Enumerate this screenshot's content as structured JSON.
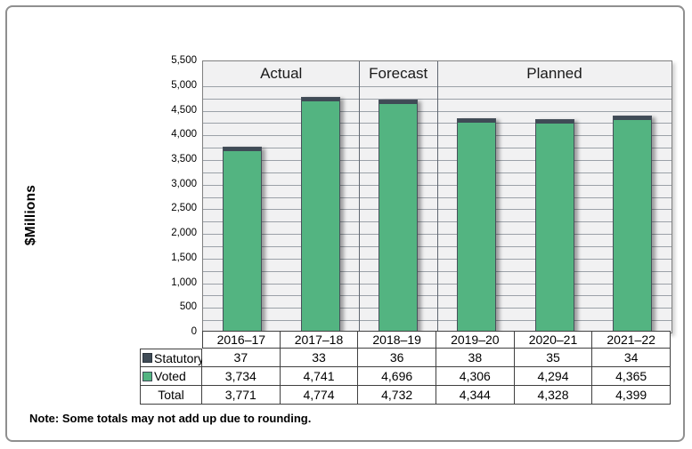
{
  "y_axis_title": "$Millions",
  "note": "Note: Some totals may not add up due to rounding.",
  "colors": {
    "voted_green": "#53B481",
    "statutory_slate": "#3F4B56",
    "plot_background": "#f1f1f2",
    "gridline": "#9ba1a8",
    "separator": "#5f6670",
    "table_border": "#404040",
    "frame_border": "#8f8f8f"
  },
  "chart_data": {
    "type": "bar",
    "stacked": true,
    "title": "",
    "xlabel": "",
    "ylabel": "$Millions",
    "ylim": [
      0,
      5500
    ],
    "y_tick_step": 500,
    "gridline_step": 250,
    "grid": true,
    "legend_position": "table-left",
    "categories": [
      "2016–17",
      "2017–18",
      "2018–19",
      "2019–20",
      "2020–21",
      "2021–22"
    ],
    "sections": [
      {
        "label": "Actual",
        "span": 2
      },
      {
        "label": "Forecast",
        "span": 1
      },
      {
        "label": "Planned",
        "span": 3
      }
    ],
    "series": [
      {
        "name": "Statutory",
        "color": "#3F4B56",
        "values": [
          37,
          33,
          36,
          38,
          35,
          34
        ]
      },
      {
        "name": "Voted",
        "color": "#53B481",
        "values": [
          3734,
          4741,
          4696,
          4306,
          4294,
          4365
        ]
      }
    ],
    "totals": [
      3771,
      4774,
      4732,
      4344,
      4328,
      4399
    ]
  },
  "y_tick_labels": [
    "0",
    "500",
    "1,000",
    "1,500",
    "2,000",
    "2,500",
    "3,000",
    "3,500",
    "4,000",
    "4,500",
    "5,000",
    "5,500"
  ],
  "table": {
    "header_cells": [
      "2016–17",
      "2017–18",
      "2018–19",
      "2019–20",
      "2020–21",
      "2021–22"
    ],
    "rows": [
      {
        "label": "Statutory",
        "swatch": "#3F4B56",
        "swatch_border": "#2c343c",
        "values": [
          "37",
          "33",
          "36",
          "38",
          "35",
          "34"
        ]
      },
      {
        "label": "Voted",
        "swatch": "#53B481",
        "swatch_border": "#3F4B56",
        "values": [
          "3,734",
          "4,741",
          "4,696",
          "4,306",
          "4,294",
          "4,365"
        ]
      },
      {
        "label": "Total",
        "swatch": null,
        "values": [
          "3,771",
          "4,774",
          "4,732",
          "4,344",
          "4,328",
          "4,399"
        ]
      }
    ]
  }
}
